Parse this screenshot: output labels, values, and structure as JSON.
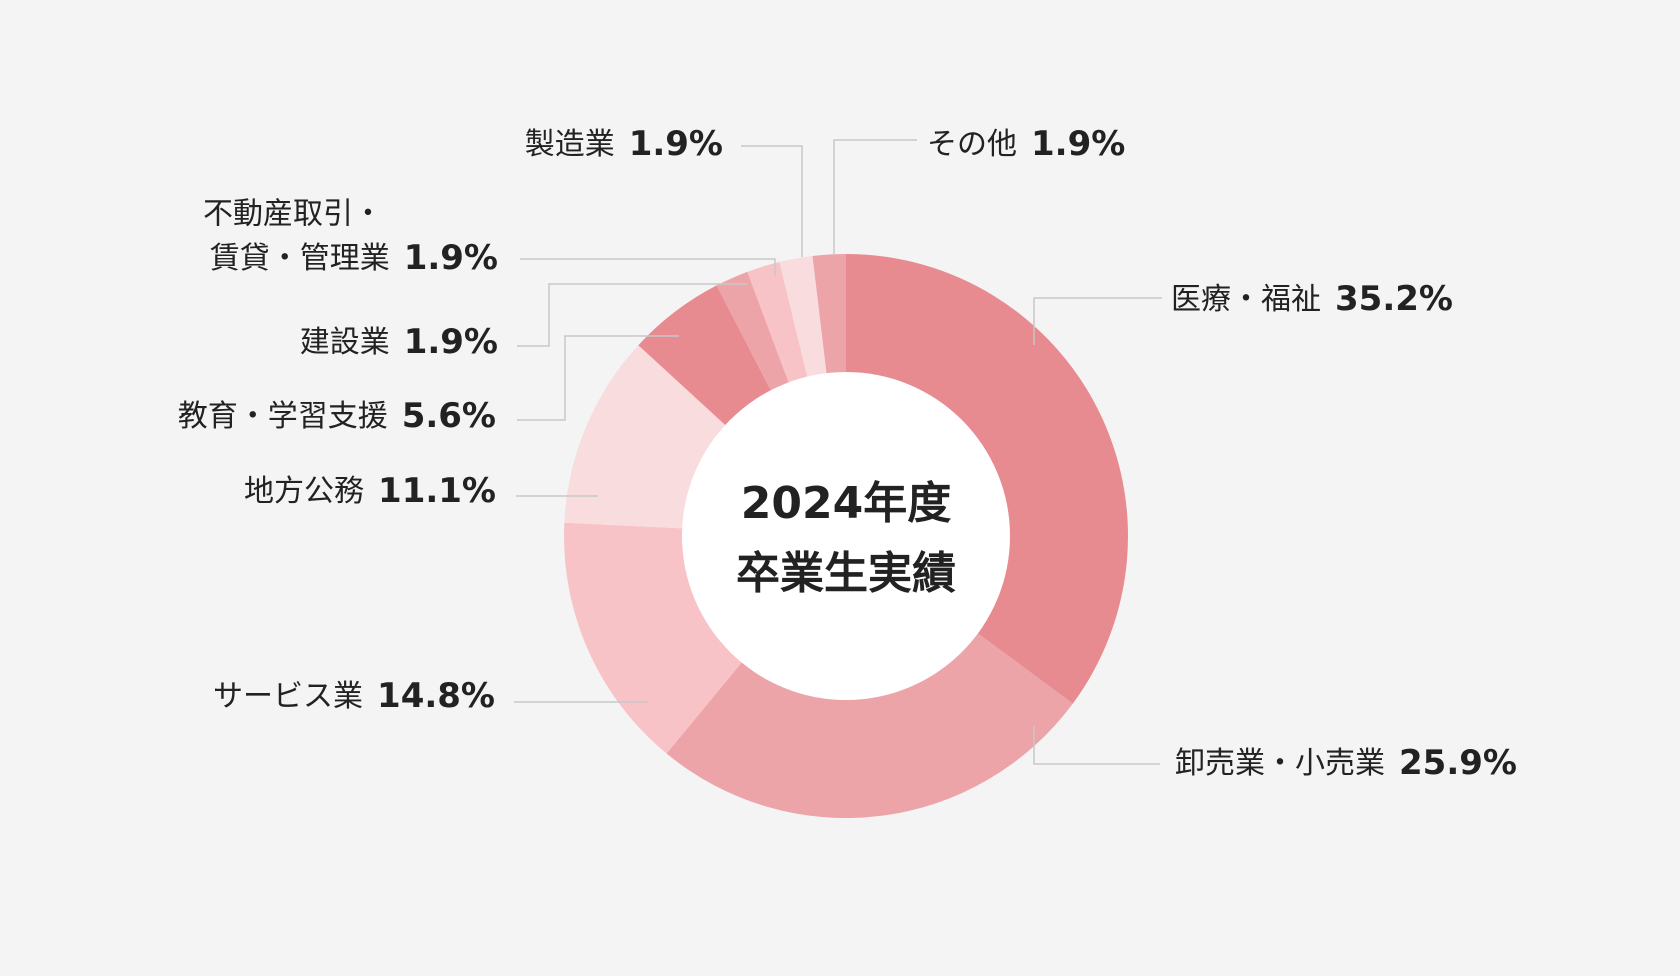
{
  "chart_data": {
    "type": "donut",
    "title": [
      "2024年度",
      "卒業生実績"
    ],
    "categories": [
      "医療・福祉",
      "卸売業・小売業",
      "サービス業",
      "地方公務",
      "教育・学習支援",
      "建設業",
      [
        "不動産取引・",
        "賃貸・管理業"
      ],
      "製造業",
      "その他"
    ],
    "values": [
      35.2,
      25.9,
      14.8,
      11.1,
      5.6,
      1.9,
      1.9,
      1.9,
      1.9
    ],
    "value_labels": [
      "35.2%",
      "25.9%",
      "14.8%",
      "11.1%",
      "5.6%",
      "1.9%",
      "1.9%",
      "1.9%",
      "1.9%"
    ],
    "colors": [
      "#e88b90",
      "#eca4a8",
      "#f8c3c6",
      "#f9dcdd",
      "#e88b90",
      "#eca4a8",
      "#f8c3c6",
      "#f9dcdd",
      "#eca4a8"
    ]
  }
}
